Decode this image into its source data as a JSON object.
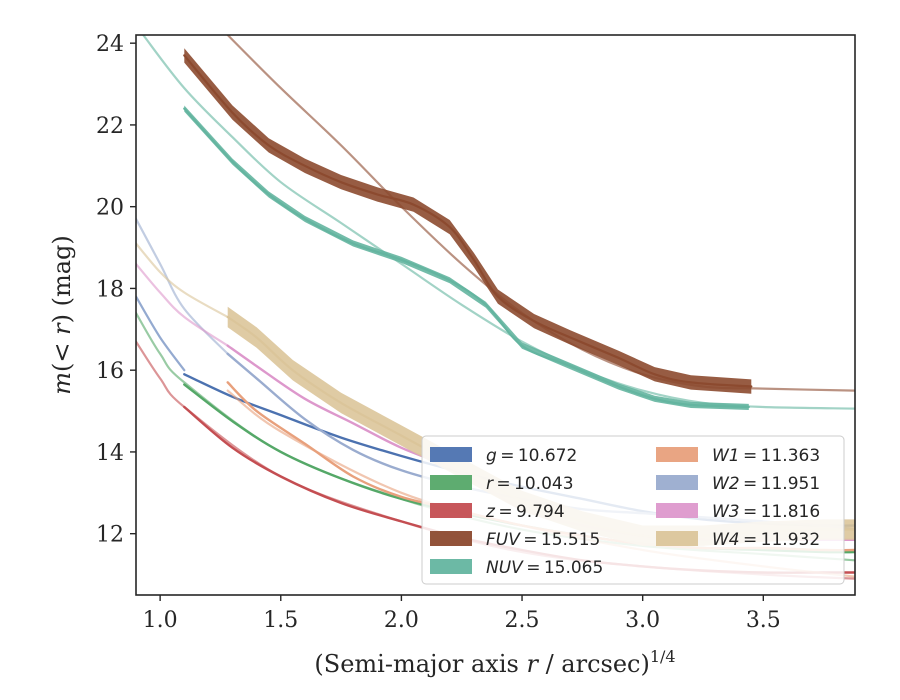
{
  "chart_data": {
    "type": "line",
    "xlabel": "(Semi-major axis r / arcsec)^{1/4}",
    "ylabel": "m(< r) (mag)",
    "xlim": [
      0.9,
      3.88
    ],
    "ylim": [
      24.2,
      10.5
    ],
    "y_inverted": true,
    "x_ticks": [
      "1.0",
      "1.5",
      "2.0",
      "2.5",
      "3.0",
      "3.5"
    ],
    "y_ticks": [
      "12",
      "14",
      "16",
      "18",
      "20",
      "22",
      "24"
    ],
    "legend_position": "lower-right",
    "series": [
      {
        "key": "g",
        "label": "g = 10.672",
        "color": "#4c72b0",
        "profile": [
          [
            1.1,
            15.9
          ],
          [
            1.3,
            15.35
          ],
          [
            1.5,
            14.9
          ],
          [
            1.75,
            14.35
          ],
          [
            2.0,
            13.9
          ],
          [
            2.25,
            13.5
          ],
          [
            2.5,
            13.15
          ],
          [
            2.75,
            12.85
          ],
          [
            3.0,
            12.55
          ],
          [
            3.25,
            12.35
          ],
          [
            3.5,
            12.25
          ],
          [
            3.75,
            12.2
          ],
          [
            3.88,
            12.2
          ]
        ],
        "extrapolation": [
          [
            0.9,
            17.8
          ],
          [
            1.0,
            16.8
          ],
          [
            1.1,
            16.0
          ]
        ]
      },
      {
        "key": "r",
        "label": "r = 10.043",
        "color": "#55a868",
        "profile": [
          [
            1.1,
            15.65
          ],
          [
            1.3,
            14.75
          ],
          [
            1.5,
            14.0
          ],
          [
            1.75,
            13.35
          ],
          [
            2.0,
            12.85
          ],
          [
            2.25,
            12.5
          ],
          [
            2.5,
            12.2
          ],
          [
            2.75,
            11.95
          ],
          [
            3.0,
            11.75
          ],
          [
            3.25,
            11.65
          ],
          [
            3.5,
            11.6
          ],
          [
            3.75,
            11.55
          ],
          [
            3.88,
            11.55
          ]
        ],
        "extrapolation": [
          [
            0.9,
            17.4
          ],
          [
            1.0,
            16.4
          ],
          [
            1.1,
            15.7
          ],
          [
            1.5,
            14.0
          ],
          [
            2.0,
            12.85
          ],
          [
            2.5,
            12.1
          ],
          [
            3.0,
            11.7
          ],
          [
            3.5,
            11.5
          ],
          [
            3.88,
            11.35
          ]
        ]
      },
      {
        "key": "z",
        "label": "z = 9.794",
        "color": "#c44e52",
        "profile": [
          [
            1.1,
            15.1
          ],
          [
            1.3,
            14.1
          ],
          [
            1.5,
            13.4
          ],
          [
            1.75,
            12.75
          ],
          [
            2.0,
            12.3
          ],
          [
            2.25,
            11.9
          ],
          [
            2.5,
            11.6
          ],
          [
            2.75,
            11.35
          ],
          [
            3.0,
            11.2
          ],
          [
            3.25,
            11.1
          ],
          [
            3.5,
            11.05
          ],
          [
            3.75,
            11.05
          ],
          [
            3.88,
            11.05
          ]
        ],
        "extrapolation": [
          [
            0.9,
            16.7
          ],
          [
            1.0,
            15.8
          ],
          [
            1.1,
            15.1
          ],
          [
            1.5,
            13.4
          ],
          [
            2.0,
            12.3
          ],
          [
            2.5,
            11.55
          ],
          [
            3.0,
            11.2
          ],
          [
            3.5,
            11.0
          ],
          [
            3.88,
            10.9
          ]
        ]
      },
      {
        "key": "FUV",
        "label": "FUV = 15.515",
        "color": "#8c4a2f",
        "profile": [
          [
            1.1,
            23.7
          ],
          [
            1.3,
            22.3
          ],
          [
            1.45,
            21.5
          ],
          [
            1.6,
            21.0
          ],
          [
            1.75,
            20.6
          ],
          [
            1.9,
            20.3
          ],
          [
            2.05,
            20.05
          ],
          [
            2.2,
            19.5
          ],
          [
            2.3,
            18.7
          ],
          [
            2.4,
            17.8
          ],
          [
            2.55,
            17.2
          ],
          [
            2.7,
            16.8
          ],
          [
            2.9,
            16.3
          ],
          [
            3.05,
            15.9
          ],
          [
            3.2,
            15.7
          ],
          [
            3.45,
            15.6
          ]
        ],
        "extrapolation": [
          [
            1.28,
            24.2
          ],
          [
            1.5,
            22.9
          ],
          [
            1.75,
            21.5
          ],
          [
            2.0,
            20.0
          ],
          [
            2.25,
            18.6
          ],
          [
            2.5,
            17.4
          ],
          [
            2.75,
            16.5
          ],
          [
            3.0,
            15.9
          ],
          [
            3.25,
            15.6
          ],
          [
            3.5,
            15.55
          ],
          [
            3.88,
            15.5
          ]
        ],
        "band": 0.35
      },
      {
        "key": "NUV",
        "label": "NUV = 15.065",
        "color": "#64b5a0",
        "profile": [
          [
            1.1,
            22.4
          ],
          [
            1.3,
            21.1
          ],
          [
            1.45,
            20.3
          ],
          [
            1.6,
            19.7
          ],
          [
            1.8,
            19.1
          ],
          [
            2.0,
            18.7
          ],
          [
            2.2,
            18.2
          ],
          [
            2.35,
            17.6
          ],
          [
            2.5,
            16.6
          ],
          [
            2.7,
            16.1
          ],
          [
            2.9,
            15.6
          ],
          [
            3.05,
            15.3
          ],
          [
            3.2,
            15.15
          ],
          [
            3.44,
            15.1
          ]
        ],
        "extrapolation": [
          [
            0.93,
            24.2
          ],
          [
            1.1,
            22.9
          ],
          [
            1.3,
            21.7
          ],
          [
            1.5,
            20.6
          ],
          [
            1.75,
            19.6
          ],
          [
            2.0,
            18.6
          ],
          [
            2.25,
            17.6
          ],
          [
            2.5,
            16.7
          ],
          [
            2.75,
            16.0
          ],
          [
            3.0,
            15.5
          ],
          [
            3.25,
            15.2
          ],
          [
            3.5,
            15.1
          ],
          [
            3.88,
            15.06
          ]
        ],
        "band": 0.15
      },
      {
        "key": "W1",
        "label": "W1 = 11.363",
        "color": "#e8a07c",
        "profile": [
          [
            1.28,
            15.7
          ],
          [
            1.4,
            15.0
          ],
          [
            1.6,
            14.2
          ],
          [
            1.8,
            13.4
          ],
          [
            2.0,
            12.9
          ],
          [
            2.25,
            12.55
          ],
          [
            2.5,
            12.2
          ],
          [
            2.75,
            11.95
          ],
          [
            3.0,
            11.75
          ],
          [
            3.25,
            11.65
          ],
          [
            3.5,
            11.65
          ],
          [
            3.75,
            11.6
          ],
          [
            3.88,
            11.6
          ]
        ],
        "extrapolation": [
          [
            1.28,
            15.5
          ],
          [
            1.5,
            14.5
          ],
          [
            2.0,
            13.0
          ],
          [
            2.5,
            12.2
          ],
          [
            3.0,
            11.6
          ],
          [
            3.5,
            11.2
          ],
          [
            3.88,
            10.95
          ]
        ]
      },
      {
        "key": "W2",
        "label": "W2 = 11.951",
        "color": "#9aaccf",
        "profile": [
          [
            1.28,
            16.4
          ],
          [
            1.4,
            15.8
          ],
          [
            1.6,
            14.8
          ],
          [
            1.8,
            14.05
          ],
          [
            2.0,
            13.55
          ],
          [
            2.25,
            13.15
          ],
          [
            2.5,
            12.85
          ],
          [
            2.75,
            12.6
          ],
          [
            3.0,
            12.5
          ],
          [
            3.25,
            12.4
          ],
          [
            3.5,
            12.3
          ],
          [
            3.75,
            12.2
          ],
          [
            3.88,
            12.1
          ]
        ],
        "extrapolation": [
          [
            0.9,
            19.7
          ],
          [
            1.0,
            18.6
          ],
          [
            1.1,
            17.5
          ],
          [
            1.28,
            16.4
          ]
        ]
      },
      {
        "key": "W3",
        "label": "W3 = 11.816",
        "color": "#dd98cc",
        "profile": [
          [
            1.28,
            16.6
          ],
          [
            1.4,
            16.1
          ],
          [
            1.6,
            15.3
          ],
          [
            1.8,
            14.7
          ],
          [
            2.0,
            14.1
          ],
          [
            2.25,
            13.5
          ],
          [
            2.5,
            12.6
          ],
          [
            2.75,
            12.2
          ],
          [
            3.0,
            11.95
          ],
          [
            3.25,
            11.85
          ],
          [
            3.5,
            11.85
          ],
          [
            3.75,
            11.85
          ],
          [
            3.88,
            11.85
          ]
        ],
        "extrapolation": [
          [
            0.9,
            18.6
          ],
          [
            1.0,
            17.9
          ],
          [
            1.1,
            17.3
          ],
          [
            1.28,
            16.6
          ]
        ]
      },
      {
        "key": "W4",
        "label": "W4 = 11.932",
        "color": "#dbc59a",
        "profile": [
          [
            1.28,
            17.3
          ],
          [
            1.4,
            16.8
          ],
          [
            1.55,
            16.0
          ],
          [
            1.75,
            15.2
          ],
          [
            2.0,
            14.4
          ],
          [
            2.25,
            13.6
          ],
          [
            2.5,
            12.8
          ],
          [
            2.75,
            12.3
          ],
          [
            3.0,
            11.95
          ],
          [
            3.25,
            11.95
          ],
          [
            3.5,
            12.05
          ],
          [
            3.75,
            12.1
          ],
          [
            3.88,
            12.1
          ]
        ],
        "extrapolation": [
          [
            0.9,
            19.1
          ],
          [
            1.0,
            18.4
          ],
          [
            1.1,
            17.9
          ],
          [
            1.28,
            17.3
          ]
        ],
        "band": 0.5
      }
    ]
  }
}
